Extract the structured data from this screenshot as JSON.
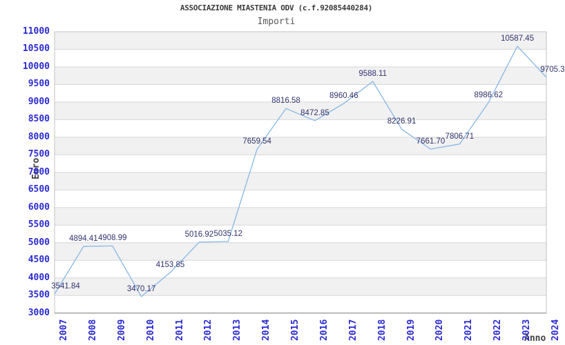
{
  "chart_data": {
    "type": "line",
    "title": "ASSOCIAZIONE MIASTENIA ODV (c.f.92085440284)",
    "subtitle": "Importi",
    "xlabel": "Anno",
    "ylabel": "Euro",
    "categories": [
      "2007",
      "2008",
      "2009",
      "2010",
      "2011",
      "2012",
      "2013",
      "2014",
      "2015",
      "2016",
      "2017",
      "2018",
      "2019",
      "2020",
      "2021",
      "2022",
      "2023",
      "2024"
    ],
    "series": [
      {
        "name": "Importi",
        "values": [
          3541.84,
          4894.41,
          4908.99,
          3470.17,
          4153.85,
          5016.92,
          5035.12,
          7659.54,
          8816.58,
          8472.85,
          8960.46,
          9588.11,
          8226.91,
          7661.7,
          7806.71,
          8986.62,
          10587.45,
          9705.3
        ],
        "point_labels": [
          "3541.84",
          "4894.41",
          "4908.99",
          "3470.17",
          "4153.85",
          "5016.92",
          "5035.12",
          "7659.54",
          "8816.58",
          "8472.85",
          "8960.46",
          "9588.11",
          "8226.91",
          "7661.70",
          "7806.71",
          "8986.62",
          "10587.45",
          "9705.3"
        ]
      }
    ],
    "ylim": [
      3000,
      11000
    ],
    "ytick_step": 500,
    "ytick_labels": [
      "3000",
      "3500",
      "4000",
      "4500",
      "5000",
      "5500",
      "6000",
      "6500",
      "7000",
      "7500",
      "8000",
      "8500",
      "9000",
      "9500",
      "10000",
      "10500",
      "11000"
    ],
    "grid": "horizontal-bands",
    "legend": "none",
    "colors": {
      "line": "#85b7e6",
      "tick_label": "#2a2ad2",
      "point_label": "#32326e",
      "band": "#f1f1f1",
      "gridline": "#d7d7d7",
      "plot_border": "#c2c2c2",
      "axis_line": "#8a8a8a",
      "title": "#3a3a3a",
      "subtitle": "#5a5a5a",
      "axis_title": "#404040"
    }
  }
}
